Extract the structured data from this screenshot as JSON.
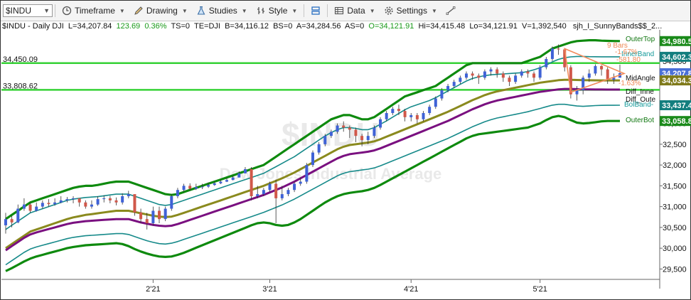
{
  "toolbar": {
    "symbol": "$INDU",
    "timeframe": "Timeframe",
    "drawing": "Drawing",
    "studies": "Studies",
    "style": "Style",
    "data": "Data",
    "settings": "Settings"
  },
  "header": {
    "symbol_tf": "$INDU - Daily DJI",
    "last": "L=34,207.84",
    "change": "123.69",
    "pct": "0.36%",
    "ts": "TS=0",
    "te": "TE=DJI",
    "b": "B=34,116.12",
    "bs": "BS=0",
    "a": "A=34,284.56",
    "as": "AS=0",
    "open": "O=34,121.91",
    "hi": "Hi=34,415.48",
    "lo": "Lo=34,121.91",
    "vol": "V=1,392,540",
    "study": "sjh_I_SunnyBands$$_2..."
  },
  "watermark": {
    "symbol": "$INDU",
    "name": "Dow Jones Industrial Average"
  },
  "hlines": [
    {
      "label": "34,450.09",
      "value": 34450.09
    },
    {
      "label": "33,808.62",
      "value": 33808.62
    }
  ],
  "price_labels": [
    {
      "text": "34,980.5",
      "value": 34980.5,
      "color": "#1a8a1a"
    },
    {
      "text": "34,602.3",
      "value": 34602.3,
      "color": "#137e7e"
    },
    {
      "text": "34,207.8",
      "value": 34207.8,
      "color": "#4a6fd8"
    },
    {
      "text": "34,034.3",
      "value": 34034.3,
      "color": "#7f7a1a"
    },
    {
      "text": "33,437.4",
      "value": 33437.4,
      "color": "#137e7e"
    },
    {
      "text": "33,058.8",
      "value": 33058.8,
      "color": "#1a8a1a"
    }
  ],
  "annotations": [
    {
      "text": "OuterTop",
      "color": "#117711"
    },
    {
      "text": "InnerBand",
      "color": "#159a9a"
    },
    {
      "text": "MidAngle",
      "color": "#111111"
    },
    {
      "text": "Diff_Inne",
      "color": "#111111"
    },
    {
      "text": "Diff_Oute",
      "color": "#111111"
    },
    {
      "text": "BolBand-",
      "color": "#159a9a"
    },
    {
      "text": "OuterBot",
      "color": "#117711"
    },
    {
      "text": "9 Bars",
      "color": "#ee8855"
    },
    {
      "text": "-1.67%",
      "color": "#ee8855"
    },
    {
      "text": "-581.80",
      "color": "#ee8855"
    },
    {
      "text": "-1.63%",
      "color": "#ee8855"
    }
  ],
  "chart_data": {
    "type": "candlestick",
    "y_ticks": [
      "29,500",
      "30,000",
      "30,500",
      "31,000",
      "31,500",
      "32,000",
      "32,500",
      "33,000",
      "33,500",
      "34,000",
      "34,500"
    ],
    "ylim": [
      29250,
      35250
    ],
    "x_ticks": [
      {
        "label": "2'21",
        "index": 24
      },
      {
        "label": "3'21",
        "index": 43
      },
      {
        "label": "4'21",
        "index": 66
      },
      {
        "label": "5'21",
        "index": 87
      }
    ],
    "close": [
      30700,
      30620,
      30950,
      31050,
      30900,
      31000,
      31090,
      31060,
      31100,
      31150,
      31180,
      31200,
      31100,
      31000,
      31050,
      31180,
      31200,
      31150,
      31100,
      31250,
      31300,
      30860,
      30700,
      30600,
      30900,
      30700,
      30950,
      31250,
      31400,
      31500,
      31430,
      31470,
      31480,
      31520,
      31560,
      31600,
      31640,
      31700,
      31800,
      31900,
      31250,
      31300,
      31400,
      31550,
      31200,
      31300,
      31400,
      31550,
      31600,
      32000,
      32300,
      32500,
      32700,
      32800,
      32950,
      32900,
      32850,
      32700,
      32600,
      32700,
      32900,
      33100,
      33250,
      33350,
      33300,
      33150,
      33200,
      33100,
      33250,
      33400,
      33600,
      33800,
      33900,
      34000,
      34100,
      34200,
      34150,
      34100,
      34250,
      34300,
      34200,
      34100,
      34000,
      34150,
      34250,
      34200,
      34100,
      34350,
      34550,
      34800,
      34780,
      34350,
      33700,
      33800,
      34100,
      34200,
      34380,
      34300,
      34050,
      34100,
      34207.84
    ],
    "high": [
      30850,
      30780,
      31050,
      31200,
      31100,
      31100,
      31150,
      31180,
      31200,
      31250,
      31230,
      31250,
      31200,
      31150,
      31150,
      31250,
      31270,
      31260,
      31220,
      31320,
      31380,
      31100,
      30950,
      30850,
      31000,
      31000,
      31000,
      31300,
      31450,
      31550,
      31560,
      31550,
      31550,
      31580,
      31610,
      31650,
      31690,
      31750,
      31850,
      31950,
      31950,
      31500,
      31450,
      31600,
      31650,
      31500,
      31450,
      31600,
      31700,
      32050,
      32350,
      32550,
      32750,
      32850,
      33000,
      33050,
      32950,
      32900,
      32750,
      32800,
      32950,
      33150,
      33300,
      33400,
      33450,
      33350,
      33250,
      33250,
      33300,
      33450,
      33650,
      33850,
      33950,
      34050,
      34150,
      34250,
      34250,
      34200,
      34300,
      34350,
      34350,
      34250,
      34150,
      34200,
      34300,
      34300,
      34250,
      34400,
      34600,
      34850,
      34900,
      34800,
      34400,
      33900,
      34150,
      34300,
      34420,
      34400,
      34350,
      34200,
      34415.48
    ],
    "low": [
      30350,
      30500,
      30600,
      30900,
      30850,
      30880,
      30950,
      31000,
      31020,
      31080,
      31100,
      31080,
      31000,
      30950,
      30950,
      31020,
      31100,
      31080,
      31030,
      31050,
      31200,
      30780,
      30600,
      30450,
      30550,
      30600,
      30650,
      30900,
      31200,
      31350,
      31380,
      31400,
      31420,
      31450,
      31500,
      31540,
      31590,
      31630,
      31700,
      31800,
      31150,
      31200,
      31250,
      31350,
      30600,
      31150,
      31250,
      31350,
      31500,
      31550,
      31950,
      32250,
      32450,
      32650,
      32750,
      32800,
      32650,
      32550,
      32450,
      32500,
      32650,
      32850,
      33050,
      33200,
      33200,
      33050,
      33050,
      33000,
      33050,
      33200,
      33350,
      33550,
      33750,
      33850,
      33950,
      34050,
      34050,
      33950,
      34050,
      34150,
      34100,
      34000,
      33900,
      33950,
      34100,
      34100,
      34000,
      34050,
      34300,
      34500,
      34650,
      34250,
      33600,
      33550,
      33700,
      34000,
      34150,
      34150,
      33950,
      33950,
      34121.91
    ],
    "series": [
      {
        "name": "OuterTop",
        "values": [
          30700,
          30800,
          30900,
          31000,
          31100,
          31150,
          31200,
          31250,
          31300,
          31350,
          31400,
          31450,
          31480,
          31500,
          31500,
          31520,
          31550,
          31580,
          31600,
          31600,
          31600,
          31550,
          31500,
          31450,
          31400,
          31350,
          31300,
          31280,
          31300,
          31350,
          31400,
          31450,
          31500,
          31550,
          31600,
          31650,
          31700,
          31750,
          31800,
          31850,
          31900,
          31950,
          32000,
          32100,
          32200,
          32300,
          32400,
          32500,
          32600,
          32700,
          32800,
          32900,
          33000,
          33100,
          33150,
          33200,
          33200,
          33150,
          33100,
          33100,
          33150,
          33250,
          33350,
          33450,
          33550,
          33650,
          33700,
          33750,
          33800,
          33850,
          33900,
          34000,
          34100,
          34200,
          34300,
          34400,
          34450,
          34450,
          34450,
          34450,
          34450,
          34450,
          34450,
          34450,
          34450,
          34500,
          34550,
          34600,
          34700,
          34800,
          34850,
          34900,
          34950,
          34980,
          34990,
          35000,
          35000,
          34990,
          34985,
          34982,
          34980.5
        ]
      },
      {
        "name": "InnerBand",
        "values": [
          30450,
          30550,
          30650,
          30750,
          30850,
          30900,
          30950,
          31000,
          31050,
          31100,
          31150,
          31180,
          31200,
          31220,
          31230,
          31240,
          31260,
          31280,
          31300,
          31300,
          31300,
          31250,
          31200,
          31150,
          31100,
          31050,
          31030,
          31050,
          31100,
          31150,
          31200,
          31250,
          31300,
          31350,
          31400,
          31450,
          31500,
          31550,
          31600,
          31650,
          31700,
          31750,
          31800,
          31880,
          31960,
          32040,
          32120,
          32200,
          32300,
          32400,
          32500,
          32600,
          32700,
          32780,
          32850,
          32900,
          32900,
          32880,
          32850,
          32850,
          32900,
          32980,
          33060,
          33150,
          33240,
          33330,
          33400,
          33450,
          33500,
          33550,
          33620,
          33700,
          33780,
          33860,
          33940,
          34020,
          34080,
          34120,
          34150,
          34170,
          34180,
          34190,
          34200,
          34210,
          34220,
          34250,
          34290,
          34340,
          34400,
          34480,
          34540,
          34580,
          34600,
          34610,
          34610,
          34605,
          34603,
          34602,
          34602,
          34602,
          34602.3
        ]
      },
      {
        "name": "MidAngle",
        "values": [
          30000,
          30100,
          30200,
          30300,
          30400,
          30450,
          30500,
          30550,
          30600,
          30650,
          30700,
          30740,
          30770,
          30800,
          30820,
          30840,
          30860,
          30880,
          30900,
          30900,
          30900,
          30870,
          30840,
          30810,
          30780,
          30760,
          30750,
          30760,
          30800,
          30850,
          30900,
          30950,
          31000,
          31050,
          31100,
          31150,
          31200,
          31250,
          31300,
          31350,
          31400,
          31450,
          31500,
          31560,
          31620,
          31680,
          31750,
          31820,
          31900,
          31980,
          32060,
          32140,
          32220,
          32300,
          32380,
          32440,
          32480,
          32500,
          32520,
          32540,
          32570,
          32620,
          32680,
          32740,
          32800,
          32860,
          32920,
          32980,
          33040,
          33100,
          33160,
          33220,
          33280,
          33350,
          33420,
          33490,
          33560,
          33620,
          33680,
          33730,
          33770,
          33800,
          33830,
          33860,
          33890,
          33920,
          33950,
          33980,
          34000,
          34020,
          34040,
          34050,
          34050,
          34045,
          34040,
          34038,
          34036,
          34035,
          34034,
          34034,
          34034.3
        ]
      },
      {
        "name": "Diff_Inner",
        "values": [
          29950,
          30050,
          30150,
          30250,
          30330,
          30380,
          30420,
          30460,
          30500,
          30540,
          30580,
          30610,
          30630,
          30650,
          30660,
          30670,
          30680,
          30690,
          30700,
          30700,
          30700,
          30660,
          30620,
          30590,
          30560,
          30540,
          30530,
          30540,
          30580,
          30630,
          30680,
          30730,
          30780,
          30830,
          30880,
          30930,
          30980,
          31030,
          31080,
          31130,
          31180,
          31230,
          31280,
          31340,
          31400,
          31460,
          31530,
          31600,
          31680,
          31760,
          31840,
          31920,
          32000,
          32080,
          32160,
          32220,
          32260,
          32280,
          32300,
          32320,
          32350,
          32400,
          32460,
          32520,
          32580,
          32640,
          32700,
          32760,
          32820,
          32880,
          32940,
          33000,
          33060,
          33130,
          33200,
          33270,
          33340,
          33400,
          33460,
          33510,
          33550,
          33580,
          33610,
          33640,
          33670,
          33700,
          33730,
          33760,
          33780,
          33800,
          33820,
          33830,
          33830,
          33825,
          33820,
          33818,
          33816,
          33815,
          33814,
          33814,
          33814
        ]
      },
      {
        "name": "Diff_Outer",
        "values": [
          29600,
          29700,
          29800,
          29900,
          29980,
          30030,
          30070,
          30110,
          30150,
          30190,
          30230,
          30260,
          30280,
          30300,
          30310,
          30320,
          30330,
          30340,
          30350,
          30350,
          30330,
          30280,
          30230,
          30180,
          30140,
          30110,
          30100,
          30120,
          30160,
          30210,
          30260,
          30310,
          30360,
          30410,
          30460,
          30510,
          30560,
          30610,
          30660,
          30710,
          30760,
          30810,
          30860,
          30920,
          30980,
          31040,
          31110,
          31180,
          31260,
          31340,
          31420,
          31500,
          31580,
          31660,
          31740,
          31800,
          31840,
          31860,
          31880,
          31900,
          31930,
          31980,
          32040,
          32100,
          32160,
          32220,
          32280,
          32340,
          32400,
          32460,
          32520,
          32580,
          32640,
          32710,
          32780,
          32850,
          32920,
          32980,
          33040,
          33090,
          33130,
          33160,
          33190,
          33220,
          33250,
          33280,
          33320,
          33360,
          33400,
          33440,
          33460,
          33460,
          33440,
          33420,
          33410,
          33420,
          33430,
          33435,
          33437,
          33437,
          33437.4
        ]
      },
      {
        "name": "OuterBot",
        "values": [
          29450,
          29520,
          29600,
          29680,
          29750,
          29800,
          29840,
          29880,
          29920,
          29960,
          30000,
          30030,
          30050,
          30070,
          30080,
          30090,
          30100,
          30110,
          30120,
          30100,
          30050,
          29980,
          29920,
          29870,
          29830,
          29800,
          29790,
          29800,
          29840,
          29890,
          29950,
          30010,
          30070,
          30130,
          30190,
          30250,
          30310,
          30370,
          30430,
          30490,
          30550,
          30600,
          30620,
          30600,
          30560,
          30540,
          30560,
          30620,
          30700,
          30800,
          30900,
          31000,
          31100,
          31180,
          31250,
          31300,
          31330,
          31350,
          31370,
          31400,
          31450,
          31520,
          31600,
          31680,
          31760,
          31840,
          31920,
          32000,
          32080,
          32160,
          32240,
          32320,
          32400,
          32480,
          32560,
          32640,
          32700,
          32740,
          32760,
          32780,
          32800,
          32820,
          32840,
          32860,
          32880,
          32900,
          32950,
          33000,
          33080,
          33150,
          33180,
          33150,
          33080,
          33020,
          33000,
          33010,
          33030,
          33050,
          33058,
          33058,
          33058.8
        ]
      }
    ]
  }
}
